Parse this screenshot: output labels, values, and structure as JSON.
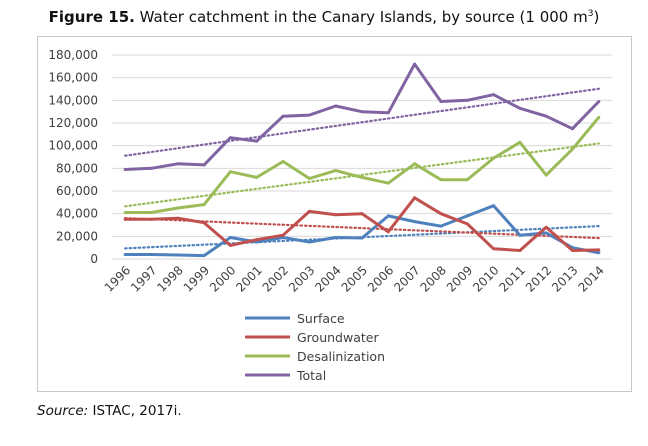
{
  "figure": {
    "label": "Figure 15.",
    "title_main": "Water catchment in the Canary Islands, by source (1 000 m",
    "title_sup": "3",
    "title_close": ")"
  },
  "source": {
    "label": "Source:",
    "text": "ISTAC, 2017i."
  },
  "chart_data": {
    "type": "line",
    "title": "Water catchment in the Canary Islands, by source (1 000 m3)",
    "xlabel": "",
    "ylabel": "",
    "ylim": [
      0,
      180000
    ],
    "yticks": [
      0,
      20000,
      40000,
      60000,
      80000,
      100000,
      120000,
      140000,
      160000,
      180000
    ],
    "ytick_labels": [
      "0",
      "20,000",
      "40,000",
      "60,000",
      "80,000",
      "100,000",
      "120,000",
      "140,000",
      "160,000",
      "180,000"
    ],
    "grid": true,
    "legend_position": "bottom",
    "trendlines": "linear, dotted, one per series",
    "categories": [
      "1996",
      "1997",
      "1998",
      "1999",
      "2000",
      "2001",
      "2002",
      "2003",
      "2004",
      "2005",
      "2006",
      "2007",
      "2008",
      "2009",
      "2010",
      "2011",
      "2012",
      "2013",
      "2014"
    ],
    "series": [
      {
        "name": "Surface",
        "color": "#4f81bd",
        "values": [
          4000,
          4000,
          3500,
          3000,
          19000,
          15000,
          19000,
          15000,
          19000,
          18500,
          38000,
          33000,
          29000,
          38000,
          47000,
          21000,
          23000,
          10000,
          5500
        ]
      },
      {
        "name": "Groundwater",
        "color": "#c0504d",
        "values": [
          35000,
          35000,
          36000,
          32000,
          12000,
          17000,
          21000,
          42000,
          39000,
          40000,
          24000,
          54000,
          40000,
          31000,
          9000,
          7500,
          28000,
          7500,
          8000
        ]
      },
      {
        "name": "Desalinization",
        "color": "#9bbb59",
        "values": [
          41000,
          41000,
          45000,
          48000,
          77000,
          72000,
          86000,
          71000,
          78000,
          72000,
          67000,
          84000,
          70000,
          70000,
          89000,
          103000,
          74000,
          97000,
          125000
        ]
      },
      {
        "name": "Total",
        "color": "#8064a2",
        "values": [
          79000,
          80000,
          84000,
          83000,
          107000,
          104000,
          126000,
          127000,
          135000,
          130000,
          129000,
          172000,
          139000,
          140000,
          145000,
          133000,
          126000,
          115000,
          139000
        ]
      }
    ]
  }
}
